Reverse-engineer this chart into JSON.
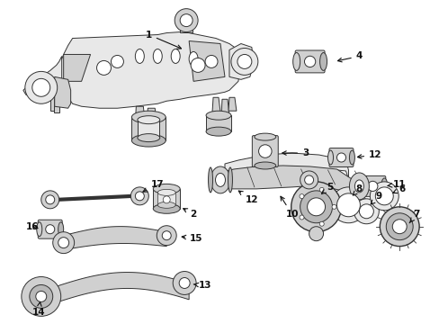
{
  "bg_color": "#ffffff",
  "fig_width": 4.89,
  "fig_height": 3.6,
  "dpi": 100,
  "line_color": "#333333",
  "fill_light": "#e8e8e8",
  "fill_mid": "#d0d0d0",
  "fill_dark": "#b8b8b8"
}
